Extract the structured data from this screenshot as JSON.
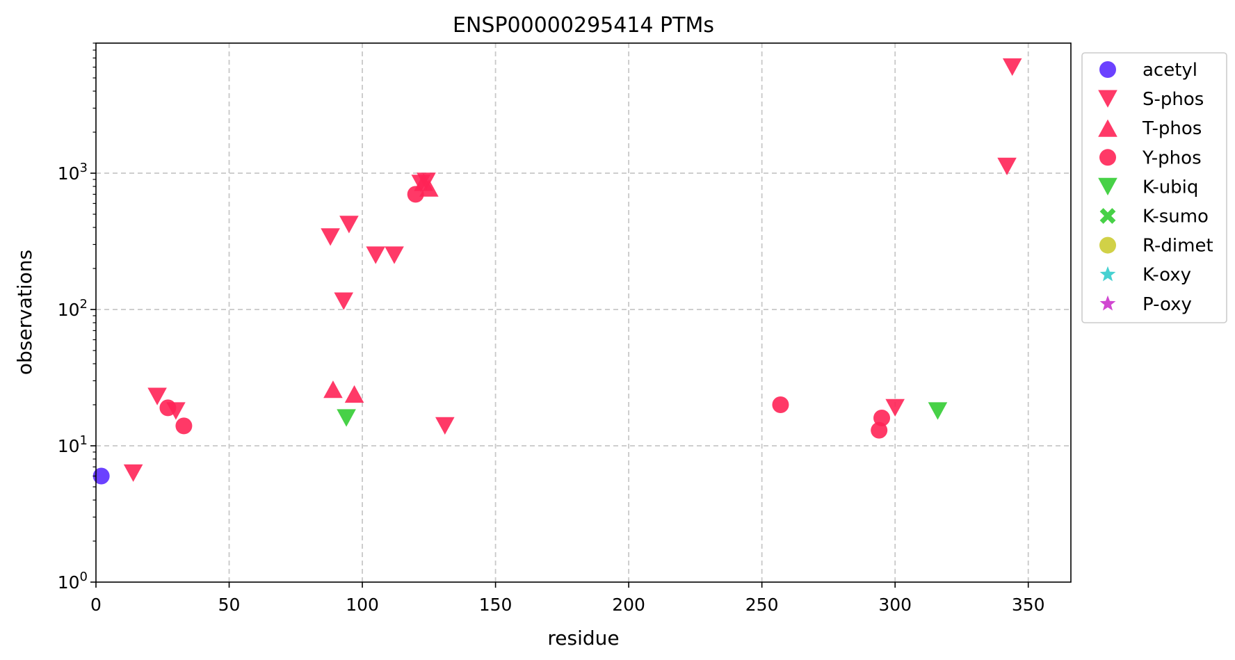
{
  "chart_data": {
    "type": "scatter",
    "title": "ENSP00000295414 PTMs",
    "xlabel": "residue",
    "ylabel": "observations",
    "xlim": [
      0,
      366
    ],
    "ylim": [
      1,
      9000
    ],
    "yscale": "log",
    "grid": true,
    "legend_position": "outside-top-right",
    "x_ticks": [
      0,
      50,
      100,
      150,
      200,
      250,
      300,
      350
    ],
    "y_ticks": [
      {
        "value": 1,
        "base": "10",
        "exp": "0"
      },
      {
        "value": 10,
        "base": "10",
        "exp": "1"
      },
      {
        "value": 100,
        "base": "10",
        "exp": "2"
      },
      {
        "value": 1000,
        "base": "10",
        "exp": "3"
      }
    ],
    "series": [
      {
        "name": "acetyl",
        "marker": "circle",
        "color": "#5b2cff",
        "points": [
          [
            2,
            6
          ]
        ]
      },
      {
        "name": "S-phos",
        "marker": "triangle-down",
        "color": "#ff2457",
        "points": [
          [
            14,
            6.3
          ],
          [
            23,
            23
          ],
          [
            30,
            18
          ],
          [
            88,
            340
          ],
          [
            93,
            115
          ],
          [
            95,
            420
          ],
          [
            105,
            250
          ],
          [
            112,
            250
          ],
          [
            122,
            840
          ],
          [
            124,
            870
          ],
          [
            131,
            14
          ],
          [
            300,
            19
          ],
          [
            342,
            1120
          ],
          [
            344,
            6000
          ]
        ]
      },
      {
        "name": "T-phos",
        "marker": "triangle-up",
        "color": "#ff2457",
        "points": [
          [
            89,
            26
          ],
          [
            97,
            24
          ],
          [
            123,
            860
          ],
          [
            125,
            780
          ]
        ]
      },
      {
        "name": "Y-phos",
        "marker": "circle",
        "color": "#ff2457",
        "points": [
          [
            27,
            19
          ],
          [
            33,
            14
          ],
          [
            120,
            700
          ],
          [
            257,
            20
          ],
          [
            294,
            13
          ],
          [
            295,
            16
          ]
        ]
      },
      {
        "name": "K-ubiq",
        "marker": "triangle-down",
        "color": "#33cc33",
        "points": [
          [
            94,
            16
          ],
          [
            316,
            18
          ]
        ]
      },
      {
        "name": "K-sumo",
        "marker": "x",
        "color": "#33cc33",
        "points": []
      },
      {
        "name": "R-dimet",
        "marker": "circle",
        "color": "#cccc33",
        "points": []
      },
      {
        "name": "K-oxy",
        "marker": "star",
        "color": "#33cccc",
        "points": []
      },
      {
        "name": "P-oxy",
        "marker": "star",
        "color": "#cc33cc",
        "points": []
      }
    ]
  }
}
